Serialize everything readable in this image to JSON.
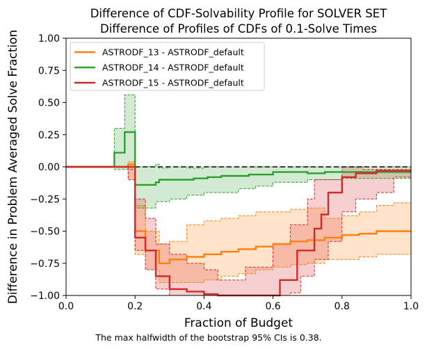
{
  "chart_data": {
    "type": "line",
    "title": "Difference of CDF-Solvability Profile for SOLVER SET",
    "subtitle": "Difference of Profiles of CDFs of 0.1-Solve Times",
    "xlabel": "Fraction of Budget",
    "ylabel": "Difference in Problem Averaged Solve Fraction",
    "xlim": [
      0,
      1
    ],
    "ylim": [
      -1,
      1
    ],
    "x_ticks": [
      "0.0",
      "0.2",
      "0.4",
      "0.6",
      "0.8",
      "1.0"
    ],
    "y_ticks": [
      "−1.00",
      "−0.75",
      "−0.50",
      "−0.25",
      "0.00",
      "0.25",
      "0.50",
      "0.75",
      "1.00"
    ],
    "grid": false,
    "legend_position": "top-left",
    "reference_line": 0,
    "footnote": "The max halfwidth of the bootstrap 95% CIs is 0.38.",
    "series": [
      {
        "name": "ASTRODF_13 - ASTRODF_default",
        "color": "#ff7f0e",
        "line": [
          [
            0,
            0
          ],
          [
            0.18,
            0
          ],
          [
            0.18,
            0.02
          ],
          [
            0.2,
            0.02
          ],
          [
            0.2,
            -0.5
          ],
          [
            0.23,
            -0.5
          ],
          [
            0.23,
            -0.65
          ],
          [
            0.27,
            -0.65
          ],
          [
            0.27,
            -0.75
          ],
          [
            0.3,
            -0.75
          ],
          [
            0.3,
            -0.72
          ],
          [
            0.35,
            -0.72
          ],
          [
            0.35,
            -0.7
          ],
          [
            0.4,
            -0.7
          ],
          [
            0.4,
            -0.68
          ],
          [
            0.45,
            -0.68
          ],
          [
            0.45,
            -0.66
          ],
          [
            0.5,
            -0.66
          ],
          [
            0.5,
            -0.64
          ],
          [
            0.55,
            -0.64
          ],
          [
            0.55,
            -0.62
          ],
          [
            0.6,
            -0.62
          ],
          [
            0.6,
            -0.6
          ],
          [
            0.65,
            -0.6
          ],
          [
            0.65,
            -0.58
          ],
          [
            0.7,
            -0.58
          ],
          [
            0.7,
            -0.57
          ],
          [
            0.75,
            -0.57
          ],
          [
            0.75,
            -0.55
          ],
          [
            0.8,
            -0.55
          ],
          [
            0.8,
            -0.53
          ],
          [
            0.85,
            -0.53
          ],
          [
            0.85,
            -0.52
          ],
          [
            0.9,
            -0.52
          ],
          [
            0.9,
            -0.5
          ],
          [
            1,
            -0.5
          ]
        ],
        "upper": [
          [
            0,
            0
          ],
          [
            0.18,
            0
          ],
          [
            0.18,
            0.04
          ],
          [
            0.2,
            0.04
          ],
          [
            0.2,
            -0.3
          ],
          [
            0.23,
            -0.3
          ],
          [
            0.23,
            -0.5
          ],
          [
            0.27,
            -0.5
          ],
          [
            0.27,
            -0.6
          ],
          [
            0.3,
            -0.6
          ],
          [
            0.3,
            -0.58
          ],
          [
            0.35,
            -0.58
          ],
          [
            0.35,
            -0.45
          ],
          [
            0.4,
            -0.45
          ],
          [
            0.4,
            -0.42
          ],
          [
            0.45,
            -0.42
          ],
          [
            0.45,
            -0.4
          ],
          [
            0.5,
            -0.4
          ],
          [
            0.5,
            -0.38
          ],
          [
            0.55,
            -0.38
          ],
          [
            0.55,
            -0.35
          ],
          [
            0.65,
            -0.35
          ],
          [
            0.65,
            -0.33
          ],
          [
            0.7,
            -0.33
          ],
          [
            0.7,
            -0.32
          ],
          [
            0.75,
            -0.32
          ],
          [
            0.75,
            -0.4
          ],
          [
            0.8,
            -0.4
          ],
          [
            0.8,
            -0.38
          ],
          [
            0.85,
            -0.38
          ],
          [
            0.85,
            -0.35
          ],
          [
            0.9,
            -0.35
          ],
          [
            0.9,
            -0.3
          ],
          [
            0.95,
            -0.3
          ],
          [
            0.95,
            -0.28
          ],
          [
            1,
            -0.28
          ]
        ],
        "lower": [
          [
            0,
            0
          ],
          [
            0.18,
            0
          ],
          [
            0.18,
            -0.1
          ],
          [
            0.2,
            -0.1
          ],
          [
            0.2,
            -0.68
          ],
          [
            0.23,
            -0.68
          ],
          [
            0.23,
            -0.8
          ],
          [
            0.27,
            -0.8
          ],
          [
            0.27,
            -0.9
          ],
          [
            0.3,
            -0.9
          ],
          [
            0.3,
            -0.9
          ],
          [
            0.35,
            -0.9
          ],
          [
            0.35,
            -0.9
          ],
          [
            0.4,
            -0.9
          ],
          [
            0.4,
            -0.88
          ],
          [
            0.45,
            -0.88
          ],
          [
            0.45,
            -0.85
          ],
          [
            0.5,
            -0.85
          ],
          [
            0.5,
            -0.83
          ],
          [
            0.55,
            -0.83
          ],
          [
            0.55,
            -0.8
          ],
          [
            0.6,
            -0.8
          ],
          [
            0.6,
            -0.78
          ],
          [
            0.65,
            -0.78
          ],
          [
            0.65,
            -0.76
          ],
          [
            0.7,
            -0.76
          ],
          [
            0.7,
            -0.75
          ],
          [
            0.75,
            -0.75
          ],
          [
            0.75,
            -0.72
          ],
          [
            0.8,
            -0.72
          ],
          [
            0.8,
            -0.72
          ],
          [
            0.85,
            -0.72
          ],
          [
            0.85,
            -0.7
          ],
          [
            0.9,
            -0.7
          ],
          [
            0.9,
            -0.68
          ],
          [
            1,
            -0.68
          ]
        ]
      },
      {
        "name": "ASTRODF_14 - ASTRODF_default",
        "color": "#2ca02c",
        "line": [
          [
            0,
            0
          ],
          [
            0.14,
            0
          ],
          [
            0.14,
            0.11
          ],
          [
            0.17,
            0.11
          ],
          [
            0.17,
            0.27
          ],
          [
            0.2,
            0.27
          ],
          [
            0.2,
            -0.14
          ],
          [
            0.26,
            -0.14
          ],
          [
            0.26,
            -0.12
          ],
          [
            0.27,
            -0.12
          ],
          [
            0.27,
            -0.1
          ],
          [
            0.37,
            -0.1
          ],
          [
            0.37,
            -0.09
          ],
          [
            0.41,
            -0.09
          ],
          [
            0.41,
            -0.08
          ],
          [
            0.45,
            -0.08
          ],
          [
            0.45,
            -0.07
          ],
          [
            0.53,
            -0.07
          ],
          [
            0.53,
            -0.06
          ],
          [
            0.6,
            -0.06
          ],
          [
            0.6,
            -0.04
          ],
          [
            0.7,
            -0.04
          ],
          [
            0.7,
            -0.05
          ],
          [
            0.75,
            -0.05
          ],
          [
            0.75,
            -0.04
          ],
          [
            1,
            -0.04
          ]
        ],
        "upper": [
          [
            0,
            0
          ],
          [
            0.14,
            0
          ],
          [
            0.14,
            0.3
          ],
          [
            0.17,
            0.3
          ],
          [
            0.17,
            0.56
          ],
          [
            0.2,
            0.56
          ],
          [
            0.2,
            0.0
          ],
          [
            0.26,
            0.0
          ],
          [
            0.26,
            0.02
          ],
          [
            0.27,
            0.02
          ],
          [
            0.27,
            -0.01
          ],
          [
            0.3,
            -0.01
          ],
          [
            0.3,
            0.0
          ],
          [
            0.35,
            0.0
          ],
          [
            0.35,
            -0.01
          ],
          [
            0.4,
            -0.01
          ],
          [
            0.4,
            0.0
          ],
          [
            1,
            0.0
          ]
        ],
        "lower": [
          [
            0,
            0
          ],
          [
            0.14,
            0
          ],
          [
            0.14,
            -0.02
          ],
          [
            0.17,
            -0.02
          ],
          [
            0.17,
            -0.02
          ],
          [
            0.2,
            -0.02
          ],
          [
            0.2,
            -0.32
          ],
          [
            0.26,
            -0.32
          ],
          [
            0.26,
            -0.27
          ],
          [
            0.3,
            -0.27
          ],
          [
            0.3,
            -0.25
          ],
          [
            0.35,
            -0.25
          ],
          [
            0.35,
            -0.22
          ],
          [
            0.4,
            -0.22
          ],
          [
            0.4,
            -0.2
          ],
          [
            0.45,
            -0.2
          ],
          [
            0.45,
            -0.2
          ],
          [
            0.5,
            -0.2
          ],
          [
            0.5,
            -0.17
          ],
          [
            0.55,
            -0.17
          ],
          [
            0.55,
            -0.15
          ],
          [
            0.6,
            -0.15
          ],
          [
            0.6,
            -0.12
          ],
          [
            0.7,
            -0.12
          ],
          [
            0.7,
            -0.1
          ],
          [
            0.8,
            -0.1
          ],
          [
            0.8,
            -0.09
          ],
          [
            1,
            -0.09
          ]
        ]
      },
      {
        "name": "ASTRODF_15 - ASTRODF_default",
        "color": "#d62728",
        "line": [
          [
            0,
            0
          ],
          [
            0.2,
            0
          ],
          [
            0.2,
            -0.55
          ],
          [
            0.23,
            -0.55
          ],
          [
            0.23,
            -0.65
          ],
          [
            0.26,
            -0.65
          ],
          [
            0.26,
            -0.85
          ],
          [
            0.3,
            -0.85
          ],
          [
            0.3,
            -0.95
          ],
          [
            0.35,
            -0.95
          ],
          [
            0.35,
            -0.97
          ],
          [
            0.4,
            -0.97
          ],
          [
            0.4,
            -0.99
          ],
          [
            0.44,
            -0.99
          ],
          [
            0.44,
            -1.0
          ],
          [
            0.62,
            -1.0
          ],
          [
            0.62,
            -0.88
          ],
          [
            0.67,
            -0.88
          ],
          [
            0.67,
            -0.65
          ],
          [
            0.72,
            -0.65
          ],
          [
            0.72,
            -0.48
          ],
          [
            0.74,
            -0.48
          ],
          [
            0.74,
            -0.37
          ],
          [
            0.76,
            -0.37
          ],
          [
            0.76,
            -0.2
          ],
          [
            0.8,
            -0.2
          ],
          [
            0.8,
            -0.08
          ],
          [
            0.84,
            -0.08
          ],
          [
            0.84,
            -0.05
          ],
          [
            0.9,
            -0.05
          ],
          [
            0.9,
            -0.03
          ],
          [
            1,
            -0.03
          ]
        ],
        "upper": [
          [
            0,
            0
          ],
          [
            0.18,
            0
          ],
          [
            0.18,
            -0.02
          ],
          [
            0.2,
            -0.02
          ],
          [
            0.2,
            -0.25
          ],
          [
            0.23,
            -0.25
          ],
          [
            0.23,
            -0.4
          ],
          [
            0.26,
            -0.4
          ],
          [
            0.26,
            -0.6
          ],
          [
            0.3,
            -0.6
          ],
          [
            0.3,
            -0.68
          ],
          [
            0.35,
            -0.68
          ],
          [
            0.35,
            -0.75
          ],
          [
            0.4,
            -0.75
          ],
          [
            0.4,
            -0.8
          ],
          [
            0.44,
            -0.8
          ],
          [
            0.44,
            -0.88
          ],
          [
            0.52,
            -0.88
          ],
          [
            0.52,
            -0.78
          ],
          [
            0.6,
            -0.78
          ],
          [
            0.6,
            -0.6
          ],
          [
            0.65,
            -0.6
          ],
          [
            0.65,
            -0.45
          ],
          [
            0.7,
            -0.45
          ],
          [
            0.7,
            -0.25
          ],
          [
            0.72,
            -0.25
          ],
          [
            0.72,
            -0.1
          ],
          [
            0.8,
            -0.1
          ],
          [
            0.8,
            0.0
          ],
          [
            0.86,
            0.0
          ],
          [
            0.86,
            -0.02
          ],
          [
            1,
            -0.02
          ]
        ],
        "lower": [
          [
            0,
            0
          ],
          [
            0.18,
            0
          ],
          [
            0.18,
            -0.1
          ],
          [
            0.2,
            -0.1
          ],
          [
            0.2,
            -0.65
          ],
          [
            0.23,
            -0.65
          ],
          [
            0.23,
            -0.8
          ],
          [
            0.26,
            -0.8
          ],
          [
            0.26,
            -0.95
          ],
          [
            0.3,
            -0.95
          ],
          [
            0.3,
            -1.0
          ],
          [
            0.65,
            -1.0
          ],
          [
            0.65,
            -0.98
          ],
          [
            0.68,
            -0.98
          ],
          [
            0.68,
            -0.85
          ],
          [
            0.72,
            -0.85
          ],
          [
            0.72,
            -0.72
          ],
          [
            0.76,
            -0.72
          ],
          [
            0.76,
            -0.58
          ],
          [
            0.8,
            -0.58
          ],
          [
            0.8,
            -0.35
          ],
          [
            0.84,
            -0.35
          ],
          [
            0.84,
            -0.25
          ],
          [
            0.9,
            -0.25
          ],
          [
            0.9,
            -0.2
          ],
          [
            0.95,
            -0.2
          ],
          [
            0.95,
            -0.08
          ],
          [
            1,
            -0.08
          ]
        ]
      }
    ]
  }
}
